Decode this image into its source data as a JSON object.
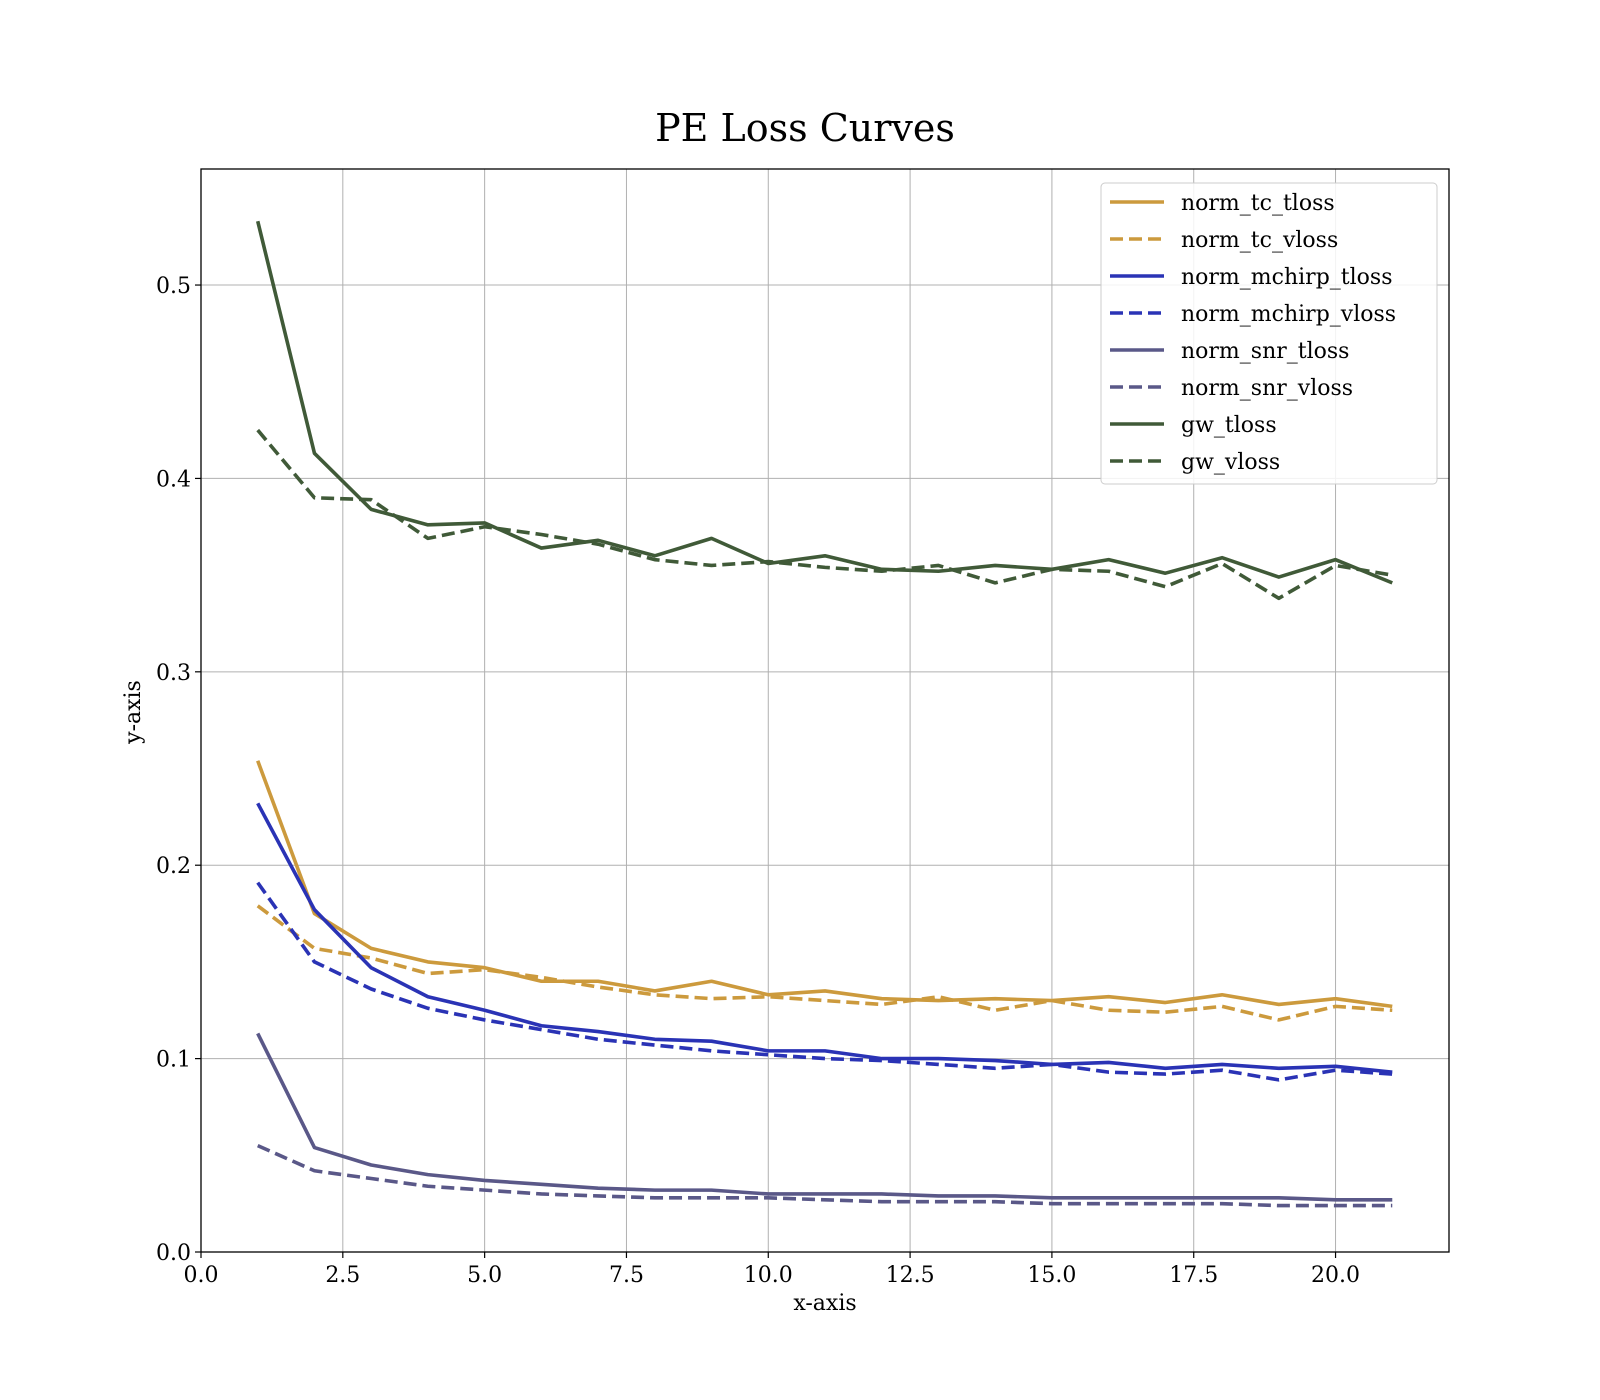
{
  "chart_data": {
    "type": "line",
    "title": "PE Loss Curves",
    "xlabel": "x-axis",
    "ylabel": "y-axis",
    "xlim": [
      0,
      22
    ],
    "ylim": [
      0,
      0.56
    ],
    "xticks": [
      0,
      2.5,
      5,
      7.5,
      10,
      12.5,
      15,
      17.5,
      20
    ],
    "xtick_labels": [
      "0.0",
      "2.5",
      "5.0",
      "7.5",
      "10.0",
      "12.5",
      "15.0",
      "17.5",
      "20.0"
    ],
    "yticks": [
      0,
      0.1,
      0.2,
      0.3,
      0.4,
      0.5
    ],
    "ytick_labels": [
      "0.0",
      "0.1",
      "0.2",
      "0.3",
      "0.4",
      "0.5"
    ],
    "grid": true,
    "legend_position": "top-right",
    "x": [
      1,
      2,
      3,
      4,
      5,
      6,
      7,
      8,
      9,
      10,
      11,
      12,
      13,
      14,
      15,
      16,
      17,
      18,
      19,
      20,
      21
    ],
    "series": [
      {
        "name": "norm_tc_tloss",
        "color": "#cc9a3d",
        "dash": "solid",
        "values": [
          0.254,
          0.175,
          0.157,
          0.15,
          0.147,
          0.14,
          0.14,
          0.135,
          0.14,
          0.133,
          0.135,
          0.131,
          0.13,
          0.131,
          0.13,
          0.132,
          0.129,
          0.133,
          0.128,
          0.131,
          0.127
        ]
      },
      {
        "name": "norm_tc_vloss",
        "color": "#cc9a3d",
        "dash": "dashed",
        "values": [
          0.179,
          0.157,
          0.152,
          0.144,
          0.146,
          0.142,
          0.137,
          0.133,
          0.131,
          0.132,
          0.13,
          0.128,
          0.132,
          0.125,
          0.13,
          0.125,
          0.124,
          0.127,
          0.12,
          0.127,
          0.125
        ]
      },
      {
        "name": "norm_mchirp_tloss",
        "color": "#2a33b5",
        "dash": "solid",
        "values": [
          0.232,
          0.177,
          0.147,
          0.132,
          0.125,
          0.117,
          0.114,
          0.11,
          0.109,
          0.104,
          0.104,
          0.1,
          0.1,
          0.099,
          0.097,
          0.098,
          0.095,
          0.097,
          0.095,
          0.096,
          0.093
        ]
      },
      {
        "name": "norm_mchirp_vloss",
        "color": "#2a33b5",
        "dash": "dashed",
        "values": [
          0.191,
          0.15,
          0.136,
          0.126,
          0.12,
          0.115,
          0.11,
          0.107,
          0.104,
          0.102,
          0.1,
          0.099,
          0.097,
          0.095,
          0.097,
          0.093,
          0.092,
          0.094,
          0.089,
          0.094,
          0.092
        ]
      },
      {
        "name": "norm_snr_tloss",
        "color": "#5a5888",
        "dash": "solid",
        "values": [
          0.113,
          0.054,
          0.045,
          0.04,
          0.037,
          0.035,
          0.033,
          0.032,
          0.032,
          0.03,
          0.03,
          0.03,
          0.029,
          0.029,
          0.028,
          0.028,
          0.028,
          0.028,
          0.028,
          0.027,
          0.027
        ]
      },
      {
        "name": "norm_snr_vloss",
        "color": "#5a5888",
        "dash": "dashed",
        "values": [
          0.055,
          0.042,
          0.038,
          0.034,
          0.032,
          0.03,
          0.029,
          0.028,
          0.028,
          0.028,
          0.027,
          0.026,
          0.026,
          0.026,
          0.025,
          0.025,
          0.025,
          0.025,
          0.024,
          0.024,
          0.024
        ]
      },
      {
        "name": "gw_tloss",
        "color": "#405a38",
        "dash": "solid",
        "values": [
          0.533,
          0.413,
          0.384,
          0.376,
          0.377,
          0.364,
          0.368,
          0.36,
          0.369,
          0.356,
          0.36,
          0.353,
          0.352,
          0.355,
          0.353,
          0.358,
          0.351,
          0.359,
          0.349,
          0.358,
          0.346
        ]
      },
      {
        "name": "gw_vloss",
        "color": "#405a38",
        "dash": "dashed",
        "values": [
          0.425,
          0.39,
          0.389,
          0.369,
          0.375,
          0.371,
          0.366,
          0.358,
          0.355,
          0.357,
          0.354,
          0.352,
          0.355,
          0.346,
          0.353,
          0.352,
          0.344,
          0.356,
          0.338,
          0.355,
          0.35
        ]
      }
    ]
  }
}
